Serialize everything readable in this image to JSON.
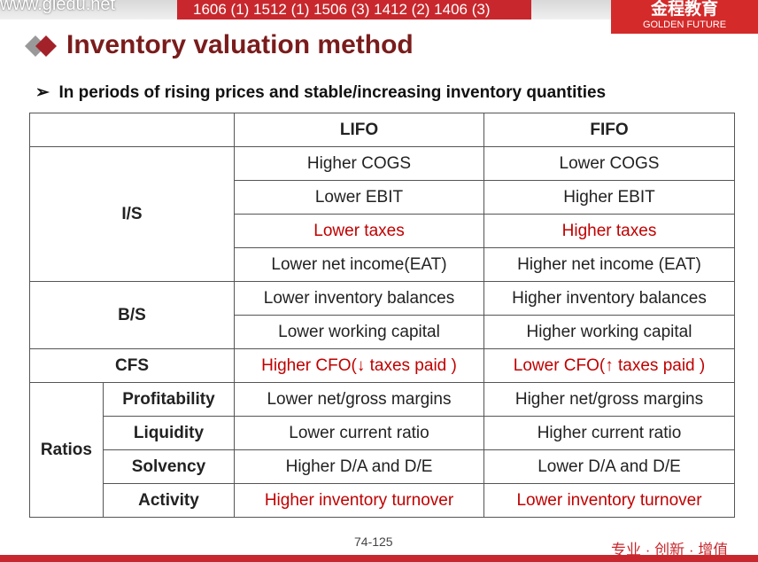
{
  "header": {
    "site": "www.gledu.net",
    "exam_codes": "1606 (1) 1512 (1) 1506 (3) 1412 (2) 1406 (3)",
    "logo_cn": "金程教育",
    "logo_en": "GOLDEN FUTURE"
  },
  "title": "Inventory valuation method",
  "bullet": "In periods of rising prices and stable/increasing inventory quantities",
  "table": {
    "columns": [
      "LIFO",
      "FIFO"
    ],
    "groups": [
      {
        "label": "I/S",
        "rows": [
          [
            "Higher COGS",
            "Lower COGS"
          ],
          [
            "Lower EBIT",
            "Higher EBIT"
          ],
          [
            "Lower taxes",
            "Higher taxes"
          ],
          [
            "Lower net income(EAT)",
            "Higher net income (EAT)"
          ]
        ]
      },
      {
        "label": "B/S",
        "rows": [
          [
            "Lower inventory balances",
            "Higher inventory balances"
          ],
          [
            "Lower working capital",
            "Higher working capital"
          ]
        ]
      },
      {
        "label": "CFS",
        "rows": [
          [
            "Higher CFO(↓ taxes paid )",
            "Lower CFO(↑ taxes paid )"
          ]
        ]
      },
      {
        "label": "Ratios",
        "rows": [
          [
            "Profitability",
            "Lower net/gross margins",
            "Higher net/gross margins"
          ],
          [
            "Liquidity",
            "Lower current ratio",
            "Higher current ratio"
          ],
          [
            "Solvency",
            "Higher D/A and D/E",
            "Lower D/A and D/E"
          ],
          [
            "Activity",
            "Higher inventory turnover",
            "Lower inventory turnover"
          ]
        ]
      }
    ]
  },
  "page_number": "74-125",
  "footer": "专业 · 创新 · 增值"
}
